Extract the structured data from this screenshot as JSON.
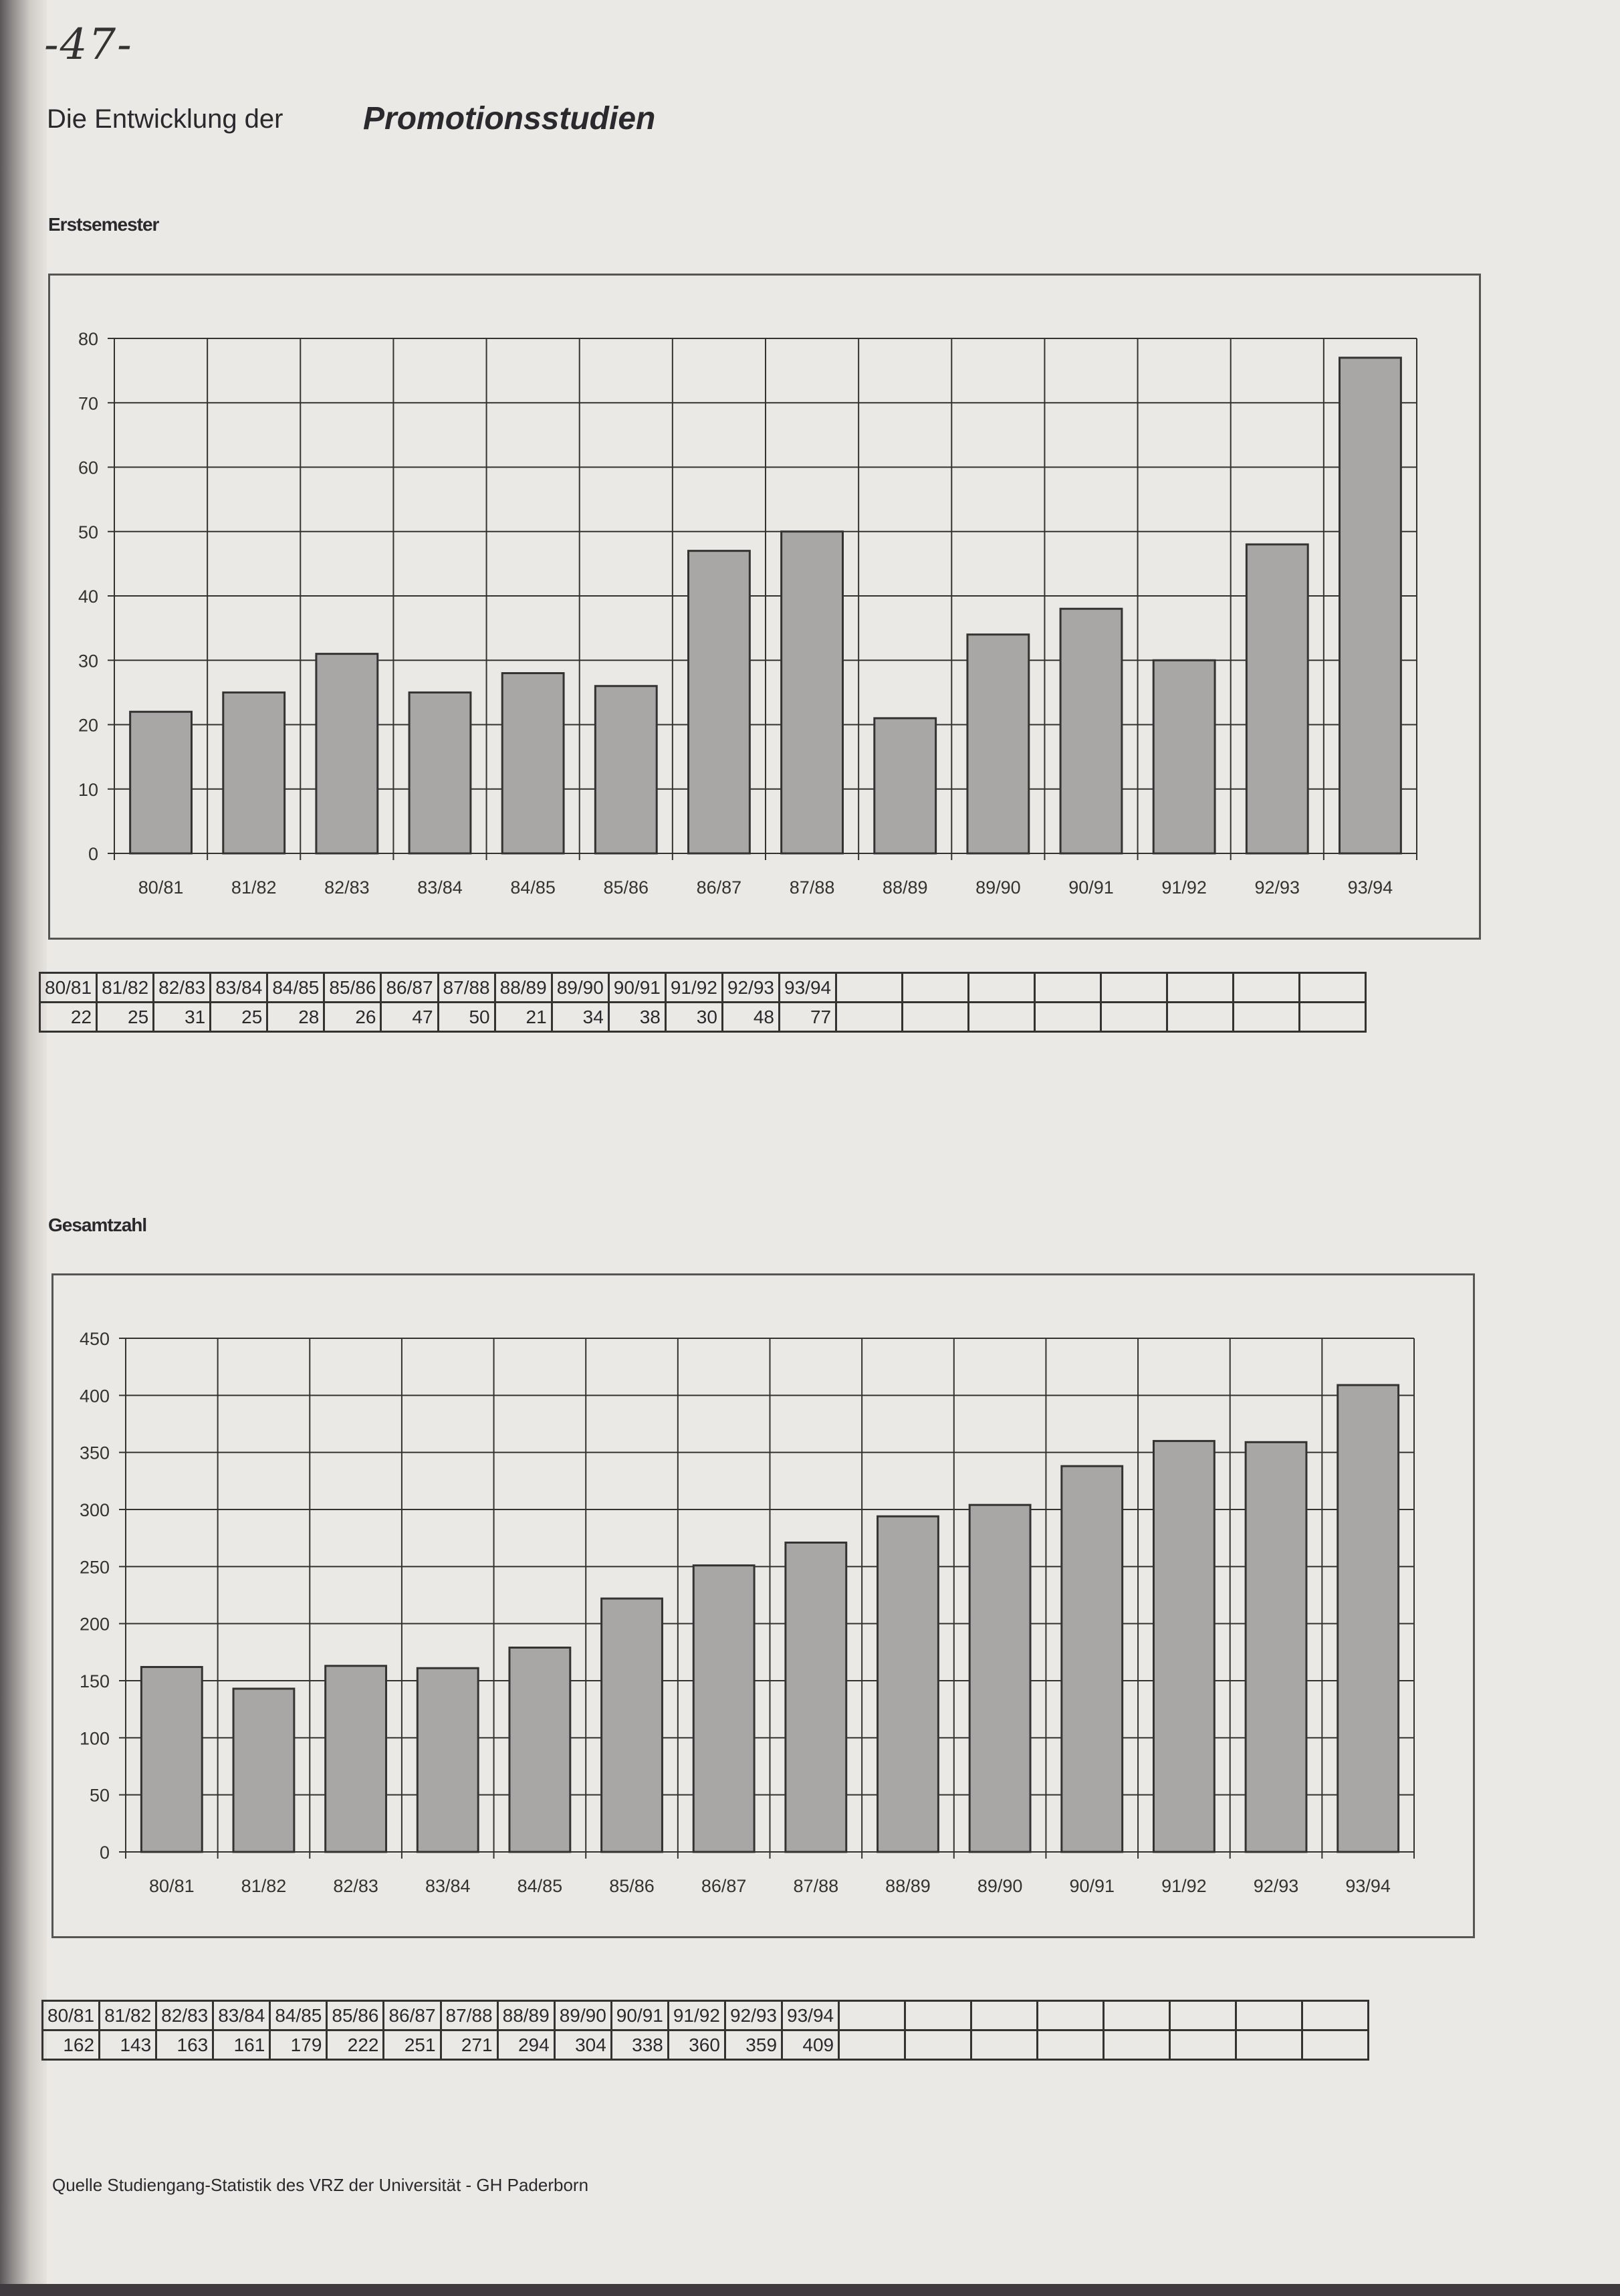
{
  "page_number": "-47-",
  "title": {
    "prefix": "Die Entwicklung der",
    "subject": "Promotionsstudien"
  },
  "footer": "Quelle  Studiengang-Statistik des VRZ der Universität - GH   Paderborn",
  "chart_data": [
    {
      "type": "bar",
      "title": "Erstsemester",
      "categories": [
        "80/81",
        "81/82",
        "82/83",
        "83/84",
        "84/85",
        "85/86",
        "86/87",
        "87/88",
        "88/89",
        "89/90",
        "90/91",
        "91/92",
        "92/93",
        "93/94"
      ],
      "values": [
        22,
        25,
        31,
        25,
        28,
        26,
        47,
        50,
        21,
        34,
        38,
        30,
        48,
        77
      ],
      "ylim": [
        0,
        80
      ],
      "yticks": [
        0,
        10,
        20,
        30,
        40,
        50,
        60,
        70,
        80
      ],
      "xlabel": "",
      "ylabel": "",
      "grid": true,
      "bar_color": "#a9a7a6"
    },
    {
      "type": "bar",
      "title": "Gesamtzahl",
      "categories": [
        "80/81",
        "81/82",
        "82/83",
        "83/84",
        "84/85",
        "85/86",
        "86/87",
        "87/88",
        "88/89",
        "89/90",
        "90/91",
        "91/92",
        "92/93",
        "93/94"
      ],
      "values": [
        162,
        143,
        163,
        161,
        179,
        222,
        251,
        271,
        294,
        304,
        338,
        360,
        359,
        409
      ],
      "ylim": [
        0,
        450
      ],
      "yticks": [
        0,
        50,
        100,
        150,
        200,
        250,
        300,
        350,
        400,
        450
      ],
      "xlabel": "",
      "ylabel": "",
      "grid": true,
      "bar_color": "#a9a7a6"
    }
  ]
}
